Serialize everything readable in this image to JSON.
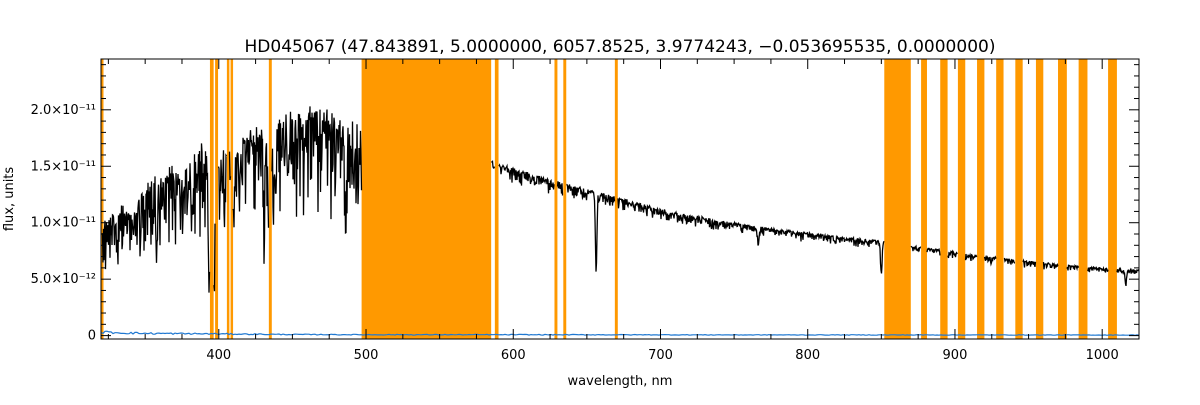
{
  "chart_data": {
    "type": "line",
    "title": "HD045067   (47.843891, 5.0000000, 6057.8525, 3.9774243, −0.053695535, 0.0000000)",
    "xlabel": "wavelength, nm",
    "ylabel": "flux, units",
    "xlim": [
      320,
      1025
    ],
    "ylim": [
      -3e-13,
      2.45e-11
    ],
    "x_ticks": [
      {
        "value": 400,
        "label": "400"
      },
      {
        "value": 500,
        "label": "500"
      },
      {
        "value": 600,
        "label": "600"
      },
      {
        "value": 700,
        "label": "700"
      },
      {
        "value": 800,
        "label": "800"
      },
      {
        "value": 900,
        "label": "900"
      },
      {
        "value": 1000,
        "label": "1000"
      }
    ],
    "y_ticks": [
      {
        "value": 0,
        "label": "0"
      },
      {
        "value": 5e-12,
        "label": "5.0×10⁻¹²"
      },
      {
        "value": 1e-11,
        "label": "1.0×10⁻¹¹"
      },
      {
        "value": 1.5e-11,
        "label": "1.5×10⁻¹¹"
      },
      {
        "value": 2e-11,
        "label": "2.0×10⁻¹¹"
      }
    ],
    "grid": false,
    "colors": {
      "flux": "#000000",
      "error": "#1f78d1",
      "masked": "#ff9900"
    },
    "masked_regions": [
      [
        320,
        321
      ],
      [
        394,
        396.5
      ],
      [
        397.5,
        399.5
      ],
      [
        405.5,
        407
      ],
      [
        408,
        409.5
      ],
      [
        434,
        436
      ],
      [
        497,
        585
      ],
      [
        587.5,
        590
      ],
      [
        628,
        630
      ],
      [
        634,
        636
      ],
      [
        669,
        671
      ],
      [
        852,
        870
      ],
      [
        877,
        881
      ],
      [
        890,
        895
      ],
      [
        902,
        907
      ],
      [
        915,
        920
      ],
      [
        928,
        933
      ],
      [
        941,
        946
      ],
      [
        955,
        960
      ],
      [
        970,
        976
      ],
      [
        984,
        990
      ],
      [
        1004,
        1010
      ]
    ],
    "series": [
      {
        "key": "flux",
        "x": [
          320,
          325,
          330,
          335,
          340,
          345,
          350,
          355,
          360,
          365,
          370,
          375,
          380,
          385,
          390,
          395,
          400,
          405,
          410,
          415,
          420,
          425,
          430,
          435,
          440,
          445,
          450,
          455,
          460,
          465,
          470,
          475,
          480,
          485,
          490,
          495,
          497,
          585,
          590,
          600,
          620,
          640,
          660,
          680,
          700,
          720,
          740,
          760,
          780,
          800,
          820,
          840,
          852,
          870,
          880,
          890,
          900,
          910,
          920,
          930,
          940,
          950,
          960,
          970,
          980,
          990,
          1000,
          1010,
          1025
        ],
        "y": [
          1e-11,
          1.05e-11,
          1.1e-11,
          1.15e-11,
          1.05e-11,
          1.2e-11,
          1.3e-11,
          1.4e-11,
          1.35e-11,
          1.45e-11,
          1.5e-11,
          1.4e-11,
          1.55e-11,
          1.6e-11,
          1.7e-11,
          1.5e-11,
          1.6e-11,
          1.6e-11,
          1.65e-11,
          1.75e-11,
          1.8e-11,
          1.82e-11,
          1.85e-11,
          1.7e-11,
          1.9e-11,
          1.95e-11,
          1.97e-11,
          2e-11,
          2e-11,
          1.98e-11,
          1.97e-11,
          1.95e-11,
          1.93e-11,
          1.9e-11,
          1.9e-11,
          1.88e-11,
          1.9e-11,
          1.55e-11,
          1.52e-11,
          1.48e-11,
          1.4e-11,
          1.33e-11,
          1.26e-11,
          1.19e-11,
          1.12e-11,
          1.07e-11,
          1.02e-11,
          9.8e-12,
          9.4e-12,
          9.1e-12,
          8.8e-12,
          8.5e-12,
          8.4e-12,
          8e-12,
          7.8e-12,
          7.6e-12,
          7.4e-12,
          7.2e-12,
          7e-12,
          6.9e-12,
          6.7e-12,
          6.6e-12,
          6.5e-12,
          6.3e-12,
          6.2e-12,
          6.1e-12,
          6e-12,
          5.9e-12,
          5.8e-12
        ]
      },
      {
        "key": "error",
        "x": [
          320,
          350,
          400,
          450,
          500,
          600,
          700,
          800,
          900,
          1025
        ],
        "y": [
          3e-13,
          2e-13,
          1.5e-13,
          1e-13,
          8e-14,
          8e-14,
          7e-14,
          6e-14,
          6e-14,
          5e-14
        ]
      }
    ],
    "absorption_lines": [
      {
        "x": 358,
        "depth": 0.35
      },
      {
        "x": 382,
        "depth": 0.25
      },
      {
        "x": 393.4,
        "depth": 0.75
      },
      {
        "x": 396.8,
        "depth": 0.7
      },
      {
        "x": 410.2,
        "depth": 0.3
      },
      {
        "x": 430.8,
        "depth": 0.3
      },
      {
        "x": 434.0,
        "depth": 0.35
      },
      {
        "x": 438.4,
        "depth": 0.25
      },
      {
        "x": 486.1,
        "depth": 0.45
      },
      {
        "x": 492,
        "depth": 0.2
      },
      {
        "x": 517.0,
        "depth": 0.2
      },
      {
        "x": 589.0,
        "depth": 0.35
      },
      {
        "x": 656.3,
        "depth": 0.55
      },
      {
        "x": 766.5,
        "depth": 0.15
      },
      {
        "x": 850.0,
        "depth": 0.35
      },
      {
        "x": 854.2,
        "depth": 0.3
      },
      {
        "x": 866.2,
        "depth": 0.3
      },
      {
        "x": 1016.0,
        "depth": 0.22
      }
    ]
  }
}
